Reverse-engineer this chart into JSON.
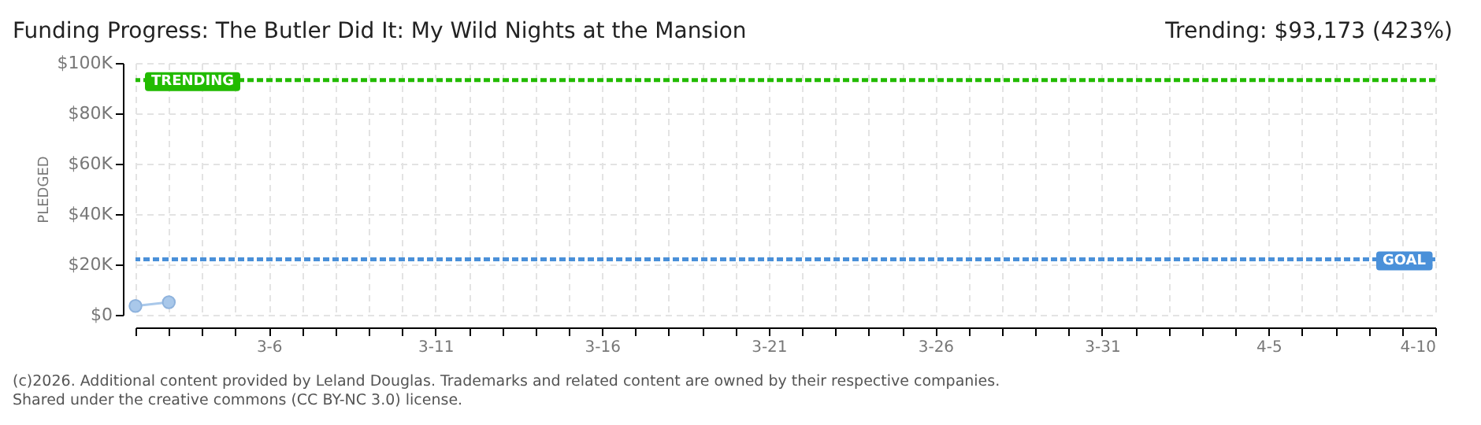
{
  "chart_data": {
    "type": "line",
    "title": "Funding Progress: The Butler Did It: My Wild Nights at the Mansion",
    "subtitle": "Trending: $93,173 (423%)",
    "ylabel": "PLEDGED",
    "x": [
      "--03-02",
      "--03-03"
    ],
    "series": [
      {
        "color": "#a9c8ea",
        "values": [
          3500,
          5000
        ]
      }
    ],
    "xlim": [
      "--03-02",
      "--04-10"
    ],
    "xticks": [
      {
        "value": "--03-02",
        "label": null
      },
      {
        "value": "--03-03",
        "label": null
      },
      {
        "value": "--03-04",
        "label": null
      },
      {
        "value": "--03-05",
        "label": null
      },
      {
        "value": "--03-06",
        "label": "3-6"
      },
      {
        "value": "--03-07",
        "label": null
      },
      {
        "value": "--03-08",
        "label": null
      },
      {
        "value": "--03-09",
        "label": null
      },
      {
        "value": "--03-10",
        "label": null
      },
      {
        "value": "--03-11",
        "label": "3-11"
      },
      {
        "value": "--03-12",
        "label": null
      },
      {
        "value": "--03-13",
        "label": null
      },
      {
        "value": "--03-14",
        "label": null
      },
      {
        "value": "--03-15",
        "label": null
      },
      {
        "value": "--03-16",
        "label": "3-16"
      },
      {
        "value": "--03-17",
        "label": null
      },
      {
        "value": "--03-18",
        "label": null
      },
      {
        "value": "--03-19",
        "label": null
      },
      {
        "value": "--03-20",
        "label": null
      },
      {
        "value": "--03-21",
        "label": "3-21"
      },
      {
        "value": "--03-22",
        "label": null
      },
      {
        "value": "--03-23",
        "label": null
      },
      {
        "value": "--03-24",
        "label": null
      },
      {
        "value": "--03-25",
        "label": null
      },
      {
        "value": "--03-26",
        "label": "3-26"
      },
      {
        "value": "--03-27",
        "label": null
      },
      {
        "value": "--03-28",
        "label": null
      },
      {
        "value": "--03-29",
        "label": null
      },
      {
        "value": "--03-30",
        "label": null
      },
      {
        "value": "--03-31",
        "label": "3-31"
      },
      {
        "value": "--04-01",
        "label": null
      },
      {
        "value": "--04-02",
        "label": null
      },
      {
        "value": "--04-03",
        "label": null
      },
      {
        "value": "--04-04",
        "label": null
      },
      {
        "value": "--04-05",
        "label": "4-5"
      },
      {
        "value": "--04-06",
        "label": null
      },
      {
        "value": "--04-07",
        "label": null
      },
      {
        "value": "--04-08",
        "label": null
      },
      {
        "value": "--04-09",
        "label": null
      },
      {
        "value": "--04-10",
        "label": "4-10"
      }
    ],
    "ylim": [
      0,
      100000
    ],
    "yticks": [
      {
        "value": 0,
        "label": "$0"
      },
      {
        "value": 20000,
        "label": "$20K"
      },
      {
        "value": 40000,
        "label": "$40K"
      },
      {
        "value": 60000,
        "label": "$60K"
      },
      {
        "value": 80000,
        "label": "$80K"
      },
      {
        "value": 100000,
        "label": "$100K"
      }
    ],
    "ref_lines": [
      {
        "axis": "y",
        "value": 93173,
        "label": "TRENDING",
        "color": "#22bb00",
        "line_style": "dashed"
      },
      {
        "axis": "y",
        "value": 22000,
        "label": "GOAL",
        "color": "#4a90d9",
        "line_style": "dashed"
      }
    ],
    "grid": true,
    "marker": "circle",
    "line_style": "solid",
    "legend": false,
    "annotations": [
      "(c)2026. Additional content provided by Leland Douglas. Trademarks and related content are owned by their respective companies.",
      "Shared under the creative commons (CC BY-NC 3.0) license."
    ]
  }
}
